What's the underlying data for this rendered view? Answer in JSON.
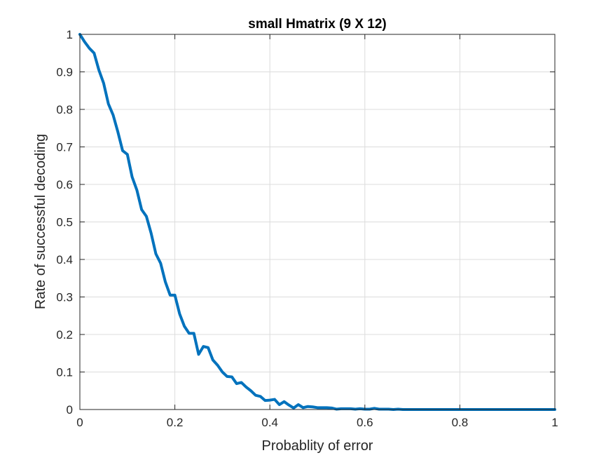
{
  "chart_data": {
    "type": "line",
    "title": "small Hmatrix (9 X 12)",
    "xlabel": "Probablity of error",
    "ylabel": "Rate of successful decoding",
    "xlim": [
      0,
      1
    ],
    "ylim": [
      0,
      1
    ],
    "xticks": [
      0,
      0.2,
      0.4,
      0.6,
      0.8,
      1
    ],
    "xtick_labels": [
      "0",
      "0.2",
      "0.4",
      "0.6",
      "0.8",
      "1"
    ],
    "yticks": [
      0,
      0.1,
      0.2,
      0.3,
      0.4,
      0.5,
      0.6,
      0.7,
      0.8,
      0.9,
      1
    ],
    "ytick_labels": [
      "0",
      "0.1",
      "0.2",
      "0.3",
      "0.4",
      "0.5",
      "0.6",
      "0.7",
      "0.8",
      "0.9",
      "1"
    ],
    "grid": true,
    "colors": {
      "line": "#0072BD",
      "grid": "#dcdcdc",
      "axes": "#262626"
    },
    "series": [
      {
        "x": [
          0,
          0.01,
          0.02,
          0.03,
          0.04,
          0.05,
          0.06,
          0.07,
          0.08,
          0.09,
          0.1,
          0.11,
          0.12,
          0.13,
          0.14,
          0.15,
          0.16,
          0.17,
          0.18,
          0.19,
          0.2,
          0.21,
          0.22,
          0.23,
          0.24,
          0.25,
          0.26,
          0.27,
          0.28,
          0.29,
          0.3,
          0.31,
          0.32,
          0.33,
          0.34,
          0.35,
          0.36,
          0.37,
          0.38,
          0.39,
          0.4,
          0.41,
          0.42,
          0.43,
          0.44,
          0.45,
          0.46,
          0.47,
          0.48,
          0.49,
          0.5,
          0.51,
          0.52,
          0.53,
          0.54,
          0.55,
          0.56,
          0.57,
          0.58,
          0.59,
          0.6,
          0.61,
          0.62,
          0.63,
          0.64,
          0.65,
          0.66,
          0.67,
          0.68,
          0.7,
          0.75,
          0.8,
          0.85,
          0.9,
          0.95,
          1.0
        ],
        "y": [
          1.0,
          0.98,
          0.963,
          0.95,
          0.905,
          0.87,
          0.815,
          0.785,
          0.74,
          0.69,
          0.68,
          0.62,
          0.585,
          0.533,
          0.515,
          0.47,
          0.415,
          0.39,
          0.34,
          0.305,
          0.305,
          0.255,
          0.222,
          0.203,
          0.203,
          0.147,
          0.168,
          0.165,
          0.132,
          0.118,
          0.1,
          0.088,
          0.087,
          0.069,
          0.072,
          0.06,
          0.05,
          0.038,
          0.035,
          0.024,
          0.025,
          0.027,
          0.013,
          0.021,
          0.012,
          0.004,
          0.013,
          0.005,
          0.008,
          0.007,
          0.005,
          0.005,
          0.005,
          0.004,
          0.001,
          0.002,
          0.002,
          0.002,
          0.001,
          0.002,
          0.001,
          0.001,
          0.003,
          0.001,
          0.001,
          0.001,
          0.0,
          0.001,
          0.0,
          0.0,
          0.0,
          0.0,
          0.0,
          0.0,
          0.0,
          0.0
        ]
      }
    ]
  }
}
